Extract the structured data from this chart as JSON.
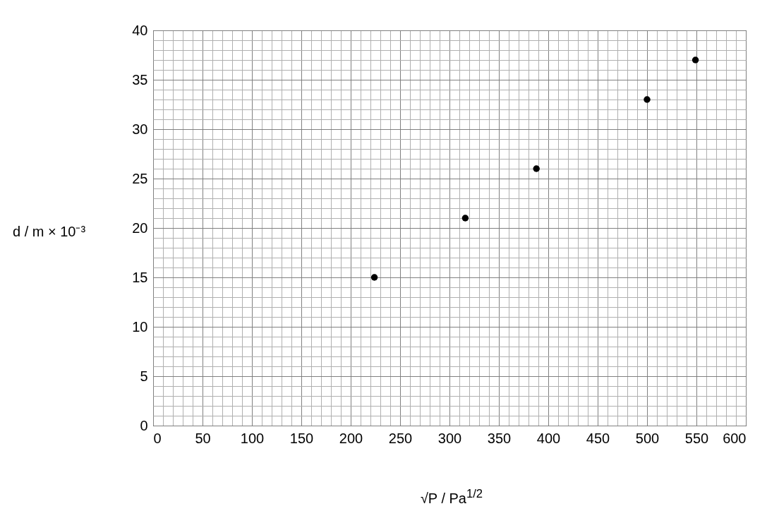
{
  "chart_data": {
    "type": "scatter",
    "xlabel": "√P / Pa$^{1/2}$",
    "ylabel": "d / m × 10⁻³",
    "x": [
      224,
      316,
      388,
      500,
      549
    ],
    "series": [
      {
        "color": "#000000",
        "values": [
          15,
          21,
          26,
          33,
          37
        ]
      }
    ],
    "xlim": [
      0,
      600
    ],
    "ylim": [
      0,
      40
    ],
    "xticks": [
      0,
      {
        "value": 10,
        "label": null
      },
      {
        "value": 20,
        "label": null
      },
      {
        "value": 30,
        "label": null
      },
      {
        "value": 40,
        "label": null
      },
      50,
      {
        "value": 60,
        "label": null
      },
      {
        "value": 70,
        "label": null
      },
      {
        "value": 80,
        "label": null
      },
      {
        "value": 90,
        "label": null
      },
      100,
      {
        "value": 110,
        "label": null
      },
      {
        "value": 120,
        "label": null
      },
      {
        "value": 130,
        "label": null
      },
      {
        "value": 140,
        "label": null
      },
      150,
      {
        "value": 160,
        "label": null
      },
      {
        "value": 170,
        "label": null
      },
      {
        "value": 180,
        "label": null
      },
      {
        "value": 190,
        "label": null
      },
      200,
      {
        "value": 210,
        "label": null
      },
      {
        "value": 220,
        "label": null
      },
      {
        "value": 230,
        "label": null
      },
      {
        "value": 240,
        "label": null
      },
      250,
      {
        "value": 260,
        "label": null
      },
      {
        "value": 270,
        "label": null
      },
      {
        "value": 280,
        "label": null
      },
      {
        "value": 290,
        "label": null
      },
      300,
      {
        "value": 310,
        "label": null
      },
      {
        "value": 320,
        "label": null
      },
      {
        "value": 330,
        "label": null
      },
      {
        "value": 340,
        "label": null
      },
      350,
      {
        "value": 360,
        "label": null
      },
      {
        "value": 370,
        "label": null
      },
      {
        "value": 380,
        "label": null
      },
      {
        "value": 390,
        "label": null
      },
      400,
      {
        "value": 410,
        "label": null
      },
      {
        "value": 420,
        "label": null
      },
      {
        "value": 430,
        "label": null
      },
      {
        "value": 440,
        "label": null
      },
      450,
      {
        "value": 460,
        "label": null
      },
      {
        "value": 470,
        "label": null
      },
      {
        "value": 480,
        "label": null
      },
      {
        "value": 490,
        "label": null
      },
      500,
      {
        "value": 510,
        "label": null
      },
      {
        "value": 520,
        "label": null
      },
      {
        "value": 530,
        "label": null
      },
      {
        "value": 540,
        "label": null
      },
      550,
      {
        "value": 560,
        "label": null
      },
      {
        "value": 570,
        "label": null
      },
      {
        "value": 580,
        "label": null
      },
      {
        "value": 590,
        "label": null
      },
      600
    ],
    "yticks": [
      0,
      {
        "value": 1,
        "label": null
      },
      {
        "value": 2,
        "label": null
      },
      {
        "value": 3,
        "label": null
      },
      {
        "value": 4,
        "label": null
      },
      5,
      {
        "value": 6,
        "label": null
      },
      {
        "value": 7,
        "label": null
      },
      {
        "value": 8,
        "label": null
      },
      {
        "value": 9,
        "label": null
      },
      10,
      {
        "value": 11,
        "label": null
      },
      {
        "value": 12,
        "label": null
      },
      {
        "value": 13,
        "label": null
      },
      {
        "value": 14,
        "label": null
      },
      15,
      {
        "value": 16,
        "label": null
      },
      {
        "value": 17,
        "label": null
      },
      {
        "value": 18,
        "label": null
      },
      {
        "value": 19,
        "label": null
      },
      20,
      {
        "value": 21,
        "label": null
      },
      {
        "value": 22,
        "label": null
      },
      {
        "value": 23,
        "label": null
      },
      {
        "value": 24,
        "label": null
      },
      25,
      {
        "value": 26,
        "label": null
      },
      {
        "value": 27,
        "label": null
      },
      {
        "value": 28,
        "label": null
      },
      {
        "value": 29,
        "label": null
      },
      30,
      {
        "value": 31,
        "label": null
      },
      {
        "value": 32,
        "label": null
      },
      {
        "value": 33,
        "label": null
      },
      {
        "value": 34,
        "label": null
      },
      35,
      {
        "value": 36,
        "label": null
      },
      {
        "value": 37,
        "label": null
      },
      {
        "value": 38,
        "label": null
      },
      {
        "value": 39,
        "label": null
      },
      40
    ],
    "grid": true,
    "marker": "circle"
  }
}
